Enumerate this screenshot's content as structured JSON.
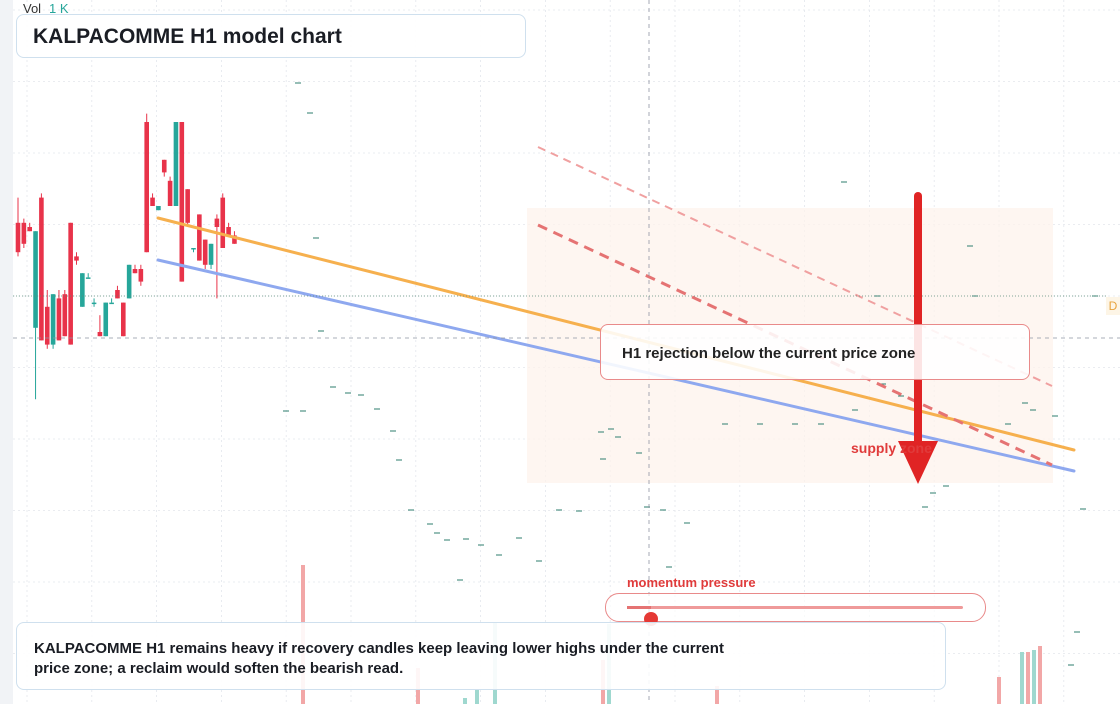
{
  "title": "KALPACOMME H1 model chart",
  "volume": {
    "label": "Vol",
    "value": "1 K"
  },
  "callout": {
    "text": "H1 rejection below the current price zone"
  },
  "supply_label": "supply zone",
  "momentum": {
    "label": "momentum pressure",
    "level": 0.07
  },
  "note": "KALPACOMME H1 remains heavy if recovery candles keep leaving lower highs under the current price zone; a reclaim would soften the bearish read.",
  "right_tag": "D",
  "colors": {
    "up": "#26a69a",
    "down": "#e8334a",
    "orange_line": "#f6b04e",
    "blue_line": "#8ea8ef",
    "red_arrow": "#e02424",
    "supply_zone": "#fdf3ec"
  },
  "chart_data": {
    "type": "candlestick",
    "price_range": [
      0,
      100
    ],
    "candles": [
      {
        "t": 1,
        "o": 66,
        "h": 72,
        "l": 58,
        "c": 59
      },
      {
        "t": 2,
        "o": 66,
        "h": 67,
        "l": 60,
        "c": 61
      },
      {
        "t": 3,
        "o": 65,
        "h": 66,
        "l": 64,
        "c": 64
      },
      {
        "t": 4,
        "o": 41,
        "h": 64,
        "l": 24,
        "c": 64
      },
      {
        "t": 5,
        "o": 72,
        "h": 73,
        "l": 38,
        "c": 38
      },
      {
        "t": 6,
        "o": 46,
        "h": 50,
        "l": 36,
        "c": 37
      },
      {
        "t": 7,
        "o": 37,
        "h": 49,
        "l": 36,
        "c": 49
      },
      {
        "t": 8,
        "o": 48,
        "h": 50,
        "l": 38,
        "c": 38
      },
      {
        "t": 9,
        "o": 49,
        "h": 50,
        "l": 39,
        "c": 39
      },
      {
        "t": 10,
        "o": 66,
        "h": 66,
        "l": 37,
        "c": 37
      },
      {
        "t": 11,
        "o": 58,
        "h": 59,
        "l": 56,
        "c": 57
      },
      {
        "t": 12,
        "o": 46,
        "h": 54,
        "l": 46,
        "c": 54
      },
      {
        "t": 13,
        "o": 53,
        "h": 54,
        "l": 53,
        "c": 53
      },
      {
        "t": 14,
        "o": 47,
        "h": 48,
        "l": 46,
        "c": 47
      },
      {
        "t": 15,
        "o": 40,
        "h": 44,
        "l": 39,
        "c": 39
      },
      {
        "t": 16,
        "o": 39,
        "h": 47,
        "l": 39,
        "c": 47
      },
      {
        "t": 17,
        "o": 47,
        "h": 48,
        "l": 47,
        "c": 47
      },
      {
        "t": 18,
        "o": 50,
        "h": 51,
        "l": 48,
        "c": 48
      },
      {
        "t": 19,
        "o": 47,
        "h": 47,
        "l": 39,
        "c": 39
      },
      {
        "t": 20,
        "o": 48,
        "h": 56,
        "l": 48,
        "c": 56
      },
      {
        "t": 21,
        "o": 55,
        "h": 56,
        "l": 54,
        "c": 54
      },
      {
        "t": 22,
        "o": 55,
        "h": 56,
        "l": 51,
        "c": 52
      },
      {
        "t": 23,
        "o": 90,
        "h": 92,
        "l": 59,
        "c": 59
      },
      {
        "t": 24,
        "o": 72,
        "h": 73,
        "l": 70,
        "c": 70
      },
      {
        "t": 25,
        "o": 69,
        "h": 70,
        "l": 69,
        "c": 70
      },
      {
        "t": 26,
        "o": 81,
        "h": 81,
        "l": 77,
        "c": 78
      },
      {
        "t": 27,
        "o": 76,
        "h": 77,
        "l": 70,
        "c": 70
      },
      {
        "t": 28,
        "o": 70,
        "h": 90,
        "l": 70,
        "c": 90
      },
      {
        "t": 29,
        "o": 90,
        "h": 90,
        "l": 52,
        "c": 52
      },
      {
        "t": 30,
        "o": 74,
        "h": 74,
        "l": 65,
        "c": 66
      },
      {
        "t": 31,
        "o": 60,
        "h": 60,
        "l": 59,
        "c": 60
      },
      {
        "t": 32,
        "o": 68,
        "h": 68,
        "l": 57,
        "c": 57
      },
      {
        "t": 33,
        "o": 62,
        "h": 62,
        "l": 55,
        "c": 56
      },
      {
        "t": 34,
        "o": 56,
        "h": 61,
        "l": 55,
        "c": 61
      },
      {
        "t": 35,
        "o": 67,
        "h": 68,
        "l": 48,
        "c": 65
      },
      {
        "t": 36,
        "o": 72,
        "h": 73,
        "l": 60,
        "c": 60
      },
      {
        "t": 37,
        "o": 65,
        "h": 66,
        "l": 63,
        "c": 63
      },
      {
        "t": 38,
        "o": 63,
        "h": 64,
        "l": 61,
        "c": 61
      }
    ],
    "trendlines": [
      {
        "name": "orange",
        "from": [
          25,
          72
        ],
        "to": [
          150,
          31
        ]
      },
      {
        "name": "blue",
        "from": [
          25,
          64
        ],
        "to": [
          150,
          29
        ]
      }
    ]
  }
}
